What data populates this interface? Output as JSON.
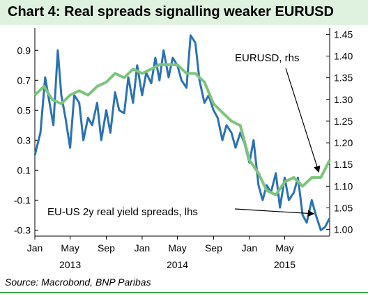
{
  "title": "Chart 4: Real spreads signalling weaker EURUSD",
  "source": "Source: Macrobond, BNP Paribas",
  "colors": {
    "title_background": "#dff2df",
    "rule": "#3aa84a",
    "spread_series": "#2a72b3",
    "eurusd_series": "#7dc47d"
  },
  "chart_data": {
    "type": "line",
    "title": "Chart 4: Real spreads signalling weaker EURUSD",
    "x_ticks": [
      "Jan",
      "May",
      "Sep",
      "Jan",
      "May",
      "Sep",
      "Jan",
      "May"
    ],
    "x_year_labels": [
      "2013",
      "2014",
      "2015"
    ],
    "x_range": [
      "2013-01-01",
      "2015-10-01"
    ],
    "left_axis": {
      "ticks": [
        "0.9",
        "0.7",
        "0.5",
        "0.3",
        "0.1",
        "-0.1",
        "-0.3"
      ],
      "range": [
        -0.34,
        1.05
      ]
    },
    "right_axis": {
      "ticks": [
        "1.45",
        "1.40",
        "1.35",
        "1.30",
        "1.25",
        "1.20",
        "1.15",
        "1.10",
        "1.05",
        "1.00"
      ],
      "range": [
        0.985,
        1.465
      ]
    },
    "grid": false,
    "annotations": [
      {
        "text": "EURUSD, rhs",
        "points_to": "EURUSD, rhs"
      },
      {
        "text": "EU-US 2y real yield spreads, lhs",
        "points_to": "EU-US 2y real yield spreads, lhs"
      }
    ],
    "series": [
      {
        "name": "EU-US 2y real yield spreads, lhs",
        "axis": "left",
        "x": [
          "2013-01-01",
          "2013-01-20",
          "2013-02-05",
          "2013-02-20",
          "2013-03-05",
          "2013-03-20",
          "2013-04-01",
          "2013-04-15",
          "2013-05-01",
          "2013-05-15",
          "2013-06-01",
          "2013-06-15",
          "2013-07-01",
          "2013-07-15",
          "2013-08-01",
          "2013-08-15",
          "2013-09-01",
          "2013-09-15",
          "2013-10-01",
          "2013-10-15",
          "2013-11-01",
          "2013-11-15",
          "2013-12-01",
          "2013-12-15",
          "2014-01-01",
          "2014-01-15",
          "2014-02-01",
          "2014-02-15",
          "2014-03-01",
          "2014-03-15",
          "2014-04-01",
          "2014-04-15",
          "2014-05-01",
          "2014-05-15",
          "2014-06-01",
          "2014-06-15",
          "2014-07-01",
          "2014-07-15",
          "2014-08-01",
          "2014-08-15",
          "2014-09-01",
          "2014-09-15",
          "2014-10-01",
          "2014-10-15",
          "2014-11-01",
          "2014-11-15",
          "2014-12-01",
          "2014-12-15",
          "2015-01-01",
          "2015-01-15",
          "2015-02-01",
          "2015-02-15",
          "2015-03-01",
          "2015-03-15",
          "2015-04-01",
          "2015-04-15",
          "2015-05-01",
          "2015-05-15",
          "2015-06-01",
          "2015-06-15",
          "2015-07-01",
          "2015-07-15",
          "2015-08-01",
          "2015-08-15",
          "2015-09-01",
          "2015-09-15",
          "2015-10-01"
        ],
        "y": [
          0.2,
          0.35,
          0.72,
          0.55,
          0.4,
          0.9,
          0.6,
          0.45,
          0.25,
          0.6,
          0.55,
          0.3,
          0.45,
          0.4,
          0.55,
          0.3,
          0.5,
          0.35,
          0.62,
          0.5,
          0.48,
          0.72,
          0.55,
          0.8,
          0.6,
          0.75,
          0.68,
          0.85,
          0.7,
          0.9,
          0.72,
          0.85,
          0.8,
          0.7,
          0.65,
          1.0,
          0.95,
          0.7,
          0.55,
          0.6,
          0.5,
          0.45,
          0.3,
          0.4,
          0.35,
          0.25,
          0.35,
          0.28,
          0.15,
          0.3,
          0.0,
          -0.1,
          0.0,
          -0.05,
          0.08,
          -0.15,
          0.05,
          -0.1,
          -0.05,
          0.05,
          -0.2,
          -0.25,
          -0.1,
          -0.2,
          -0.3,
          -0.28,
          -0.22
        ]
      },
      {
        "name": "EURUSD, rhs",
        "axis": "right",
        "x": [
          "2013-01-01",
          "2013-02-01",
          "2013-03-01",
          "2013-04-01",
          "2013-05-01",
          "2013-06-01",
          "2013-07-01",
          "2013-08-01",
          "2013-09-01",
          "2013-10-01",
          "2013-11-01",
          "2013-12-01",
          "2014-01-01",
          "2014-02-01",
          "2014-03-01",
          "2014-04-01",
          "2014-05-01",
          "2014-06-01",
          "2014-07-01",
          "2014-08-01",
          "2014-09-01",
          "2014-10-01",
          "2014-11-01",
          "2014-12-01",
          "2015-01-01",
          "2015-02-01",
          "2015-03-01",
          "2015-04-01",
          "2015-05-01",
          "2015-06-01",
          "2015-07-01",
          "2015-08-01",
          "2015-09-01",
          "2015-10-01"
        ],
        "y": [
          1.31,
          1.33,
          1.3,
          1.29,
          1.31,
          1.32,
          1.31,
          1.33,
          1.34,
          1.36,
          1.35,
          1.37,
          1.36,
          1.37,
          1.38,
          1.38,
          1.38,
          1.36,
          1.36,
          1.34,
          1.29,
          1.27,
          1.25,
          1.24,
          1.16,
          1.13,
          1.09,
          1.08,
          1.11,
          1.12,
          1.1,
          1.12,
          1.12,
          1.16
        ]
      }
    ]
  }
}
